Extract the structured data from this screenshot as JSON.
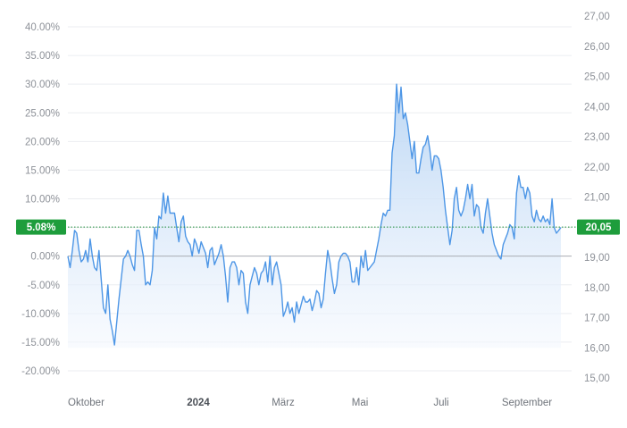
{
  "chart_data": {
    "type": "area",
    "left_axis": {
      "ticks": [
        "40.00%",
        "35.00%",
        "30.00%",
        "25.00%",
        "20.00%",
        "15.00%",
        "10.00%",
        "5.00%",
        "0.00%",
        "-5.00%",
        "-10.00%",
        "-15.00%",
        "-20.00%"
      ],
      "range": [
        -20,
        40
      ],
      "unit": "%"
    },
    "right_axis": {
      "ticks": [
        "27,00",
        "26,00",
        "25,00",
        "24,00",
        "23,00",
        "22,00",
        "21,00",
        "20,00",
        "19,00",
        "18,00",
        "17,00",
        "16,00",
        "15,00"
      ],
      "range": [
        15,
        27
      ]
    },
    "x_labels": [
      {
        "label": "Oktober",
        "bold": false
      },
      {
        "label": "2024",
        "bold": true
      },
      {
        "label": "März",
        "bold": false
      },
      {
        "label": "Mai",
        "bold": false
      },
      {
        "label": "Juli",
        "bold": false
      },
      {
        "label": "September",
        "bold": false
      }
    ],
    "current": {
      "change_label": "5.08%",
      "change_value": 5.08,
      "price_label": "20,05",
      "price_value": 20.05
    },
    "series": [
      {
        "values": [
          0.0,
          -2.0,
          1.0,
          4.5,
          4.0,
          1.0,
          -1.0,
          -0.5,
          1.0,
          -1.0,
          3.0,
          0.0,
          -2.0,
          -2.5,
          1.0,
          -4.0,
          -9.0,
          -10.0,
          -5.0,
          -11.0,
          -13.0,
          -15.5,
          -11.5,
          -7.5,
          -4.0,
          -0.5,
          0.0,
          1.0,
          0.0,
          -1.5,
          -2.5,
          4.5,
          4.5,
          2.0,
          0.0,
          -5.0,
          -4.5,
          -5.0,
          -2.5,
          5.0,
          3.0,
          7.0,
          6.5,
          11.0,
          7.5,
          10.5,
          7.5,
          7.5,
          7.5,
          5.0,
          2.5,
          6.0,
          7.0,
          3.5,
          2.5,
          2.0,
          0.0,
          3.0,
          2.0,
          0.5,
          2.5,
          1.5,
          0.5,
          -2.0,
          1.0,
          1.5,
          -1.5,
          -0.5,
          0.5,
          2.0,
          0.0,
          -3.5,
          -8.0,
          -2.0,
          -1.0,
          -1.0,
          -2.0,
          -5.0,
          -2.5,
          -3.0,
          -8.0,
          -10.0,
          -5.0,
          -3.5,
          -2.0,
          -3.0,
          -5.0,
          -3.0,
          -2.5,
          -1.0,
          -4.5,
          0.0,
          -5.0,
          -2.0,
          -1.0,
          -3.0,
          -5.0,
          -10.5,
          -9.5,
          -8.0,
          -10.0,
          -9.0,
          -11.5,
          -8.0,
          -10.0,
          -8.5,
          -7.0,
          -8.0,
          -8.0,
          -7.5,
          -9.5,
          -8.0,
          -6.0,
          -6.5,
          -9.0,
          -7.5,
          -3.0,
          1.0,
          -1.0,
          -4.0,
          -6.5,
          -5.0,
          -1.0,
          0.0,
          0.5,
          0.5,
          0.0,
          -1.0,
          -4.5,
          -4.5,
          -2.0,
          -5.0,
          0.0,
          -2.0,
          1.0,
          -2.5,
          -2.0,
          -1.5,
          -1.0,
          1.0,
          3.0,
          5.5,
          7.5,
          7.0,
          8.0,
          8.0,
          18.0,
          21.0,
          30.0,
          25.0,
          29.5,
          24.0,
          25.0,
          23.0,
          20.0,
          17.0,
          20.0,
          14.5,
          14.5,
          17.0,
          19.0,
          19.5,
          21.0,
          18.5,
          15.0,
          17.5,
          17.5,
          17.0,
          15.0,
          12.0,
          8.0,
          5.0,
          2.0,
          4.5,
          10.0,
          12.0,
          8.0,
          7.0,
          8.0,
          10.0,
          12.5,
          10.0,
          12.5,
          7.0,
          9.0,
          8.5,
          5.0,
          4.0,
          7.5,
          10.0,
          7.0,
          4.0,
          2.0,
          1.0,
          0.0,
          -0.5,
          2.0,
          3.0,
          4.0,
          5.5,
          5.0,
          3.0,
          11.0,
          14.0,
          12.0,
          12.0,
          10.0,
          12.0,
          11.0,
          7.0,
          6.0,
          8.0,
          6.5,
          6.0,
          7.0,
          6.0,
          6.5,
          5.5,
          10.0,
          5.0,
          4.0,
          4.5,
          5.0
        ]
      }
    ],
    "grid": true,
    "colors": {
      "line": "#4d96e6",
      "fill_top": "#b9d5f4",
      "fill_bottom": "#f4f8fe",
      "grid": "#ebedf0",
      "zero_line": "#a9adb3",
      "current_line": "#1e8f3a",
      "badge": "#1e9d3c",
      "badge_text": "#ffffff",
      "tick_text": "#8e9299"
    }
  }
}
